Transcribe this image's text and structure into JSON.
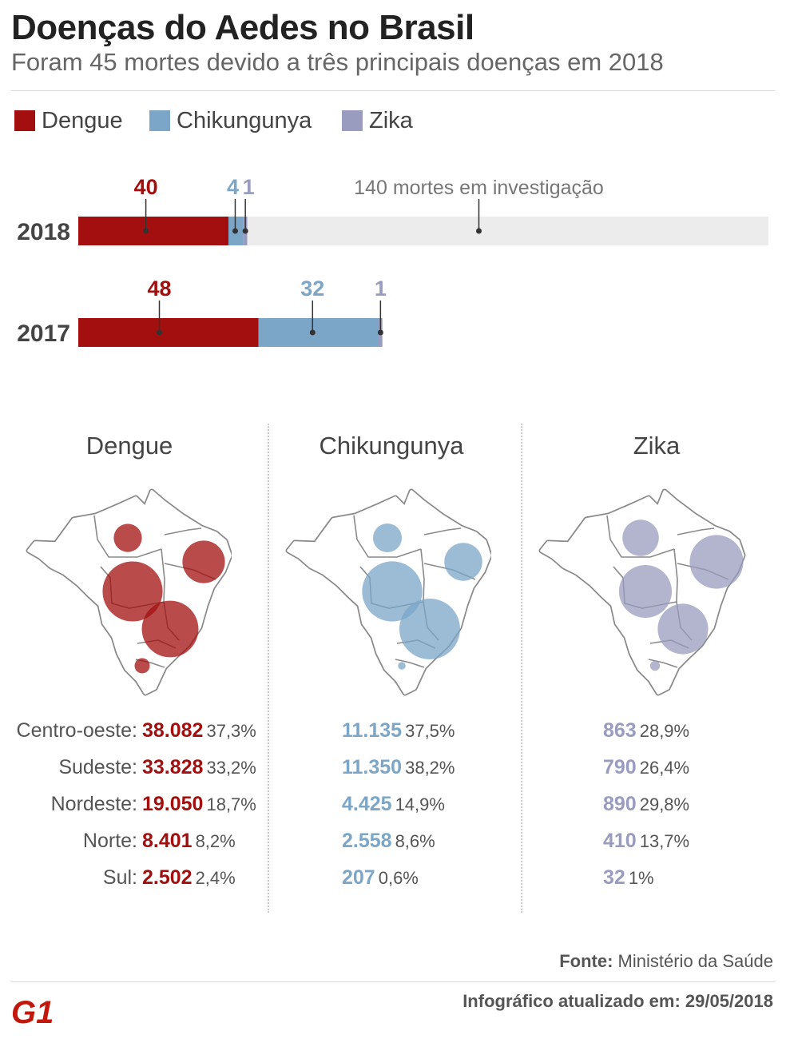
{
  "header": {
    "title": "Doenças do Aedes no Brasil",
    "subtitle": "Foram 45 mortes devido a três principais doenças em 2018"
  },
  "colors": {
    "dengue": "#a30f0f",
    "chikungunya": "#7ba6c7",
    "zika": "#9a9cbf",
    "investigation": "#ececec"
  },
  "legend": {
    "dengue": "Dengue",
    "chikungunya": "Chikungunya",
    "zika": "Zika"
  },
  "chart_data": [
    {
      "type": "bar",
      "orientation": "horizontal",
      "stacked": true,
      "categories": [
        "2018",
        "2017"
      ],
      "series": [
        {
          "name": "Dengue",
          "values": [
            40,
            48
          ]
        },
        {
          "name": "Chikungunya",
          "values": [
            4,
            32
          ]
        },
        {
          "name": "Zika",
          "values": [
            1,
            1
          ]
        },
        {
          "name": "",
          "values": [
            140,
            0
          ]
        }
      ],
      "annotations": {
        "investigation_label": "140 mortes em investigação"
      }
    },
    {
      "type": "table",
      "regions": [
        "Centro-oeste:",
        "Sudeste:",
        "Nordeste:",
        "Norte:",
        "Sul:"
      ],
      "columns": [
        {
          "name": "Dengue",
          "values": [
            "38.082",
            "33.828",
            "19.050",
            "8.401",
            "2.502"
          ],
          "percents": [
            "37,3%",
            "33,2%",
            "18,7%",
            "8,2%",
            "2,4%"
          ],
          "shares": [
            37.3,
            33.2,
            18.7,
            8.2,
            2.4
          ]
        },
        {
          "name": "Chikungunya",
          "values": [
            "11.135",
            "11.350",
            "4.425",
            "2.558",
            "207"
          ],
          "percents": [
            "37,5%",
            "38,2%",
            "14,9%",
            "8,6%",
            "0,6%"
          ],
          "shares": [
            37.5,
            38.2,
            14.9,
            8.6,
            0.6
          ]
        },
        {
          "name": "Zika",
          "values": [
            "863",
            "790",
            "890",
            "410",
            "32"
          ],
          "percents": [
            "28,9%",
            "26,4%",
            "29,8%",
            "13,7%",
            "1%"
          ],
          "shares": [
            28.9,
            26.4,
            29.8,
            13.7,
            1
          ]
        }
      ]
    }
  ],
  "footer": {
    "source_label": "Fonte:",
    "source_value": "Ministério da Saúde",
    "updated": "Infográfico atualizado em: 29/05/2018",
    "logo_text": "G1"
  }
}
